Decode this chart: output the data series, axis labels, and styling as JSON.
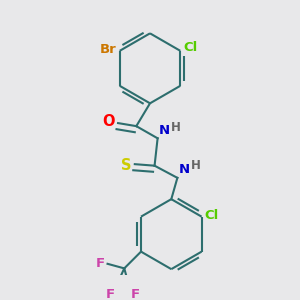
{
  "bg_color": "#e8e8ea",
  "bond_color": "#2d6e6e",
  "atom_colors": {
    "Br": "#cc7700",
    "Cl": "#55cc00",
    "O": "#ff0000",
    "N": "#0000cc",
    "H": "#666666",
    "S": "#cccc00",
    "F": "#cc44aa"
  },
  "lw": 1.5,
  "fs": 9.5
}
